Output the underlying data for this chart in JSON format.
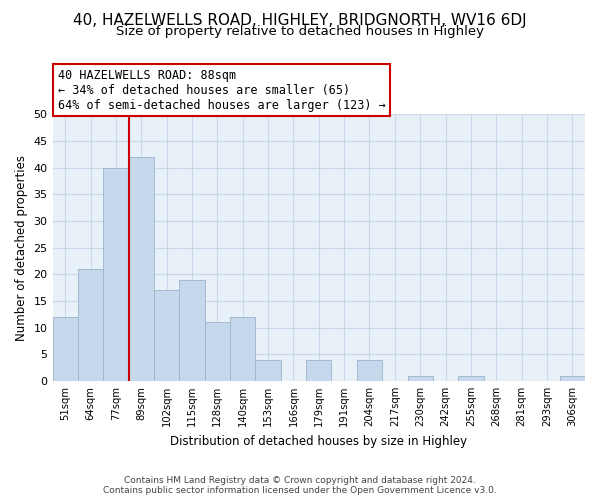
{
  "title": "40, HAZELWELLS ROAD, HIGHLEY, BRIDGNORTH, WV16 6DJ",
  "subtitle": "Size of property relative to detached houses in Highley",
  "xlabel": "Distribution of detached houses by size in Highley",
  "ylabel": "Number of detached properties",
  "bar_labels": [
    "51sqm",
    "64sqm",
    "77sqm",
    "89sqm",
    "102sqm",
    "115sqm",
    "128sqm",
    "140sqm",
    "153sqm",
    "166sqm",
    "179sqm",
    "191sqm",
    "204sqm",
    "217sqm",
    "230sqm",
    "242sqm",
    "255sqm",
    "268sqm",
    "281sqm",
    "293sqm",
    "306sqm"
  ],
  "bar_values": [
    12,
    21,
    40,
    42,
    17,
    19,
    11,
    12,
    4,
    0,
    4,
    0,
    4,
    0,
    1,
    0,
    1,
    0,
    0,
    0,
    1
  ],
  "bar_color": "#c6d9ec",
  "bar_edge_color": "#9ab5cc",
  "vline_color": "#cc0000",
  "vline_x_index": 3,
  "ylim": [
    0,
    50
  ],
  "yticks": [
    0,
    5,
    10,
    15,
    20,
    25,
    30,
    35,
    40,
    45,
    50
  ],
  "annotation_title": "40 HAZELWELLS ROAD: 88sqm",
  "annotation_line1": "← 34% of detached houses are smaller (65)",
  "annotation_line2": "64% of semi-detached houses are larger (123) →",
  "annotation_box_color": "#ffffff",
  "annotation_box_edgecolor": "#cc0000",
  "footer1": "Contains HM Land Registry data © Crown copyright and database right 2024.",
  "footer2": "Contains public sector information licensed under the Open Government Licence v3.0.",
  "background_color": "#ffffff",
  "plot_bg_color": "#e8f0f8",
  "grid_color": "#c8d8e8",
  "title_fontsize": 11,
  "subtitle_fontsize": 9.5,
  "annotation_fontsize": 8.5
}
